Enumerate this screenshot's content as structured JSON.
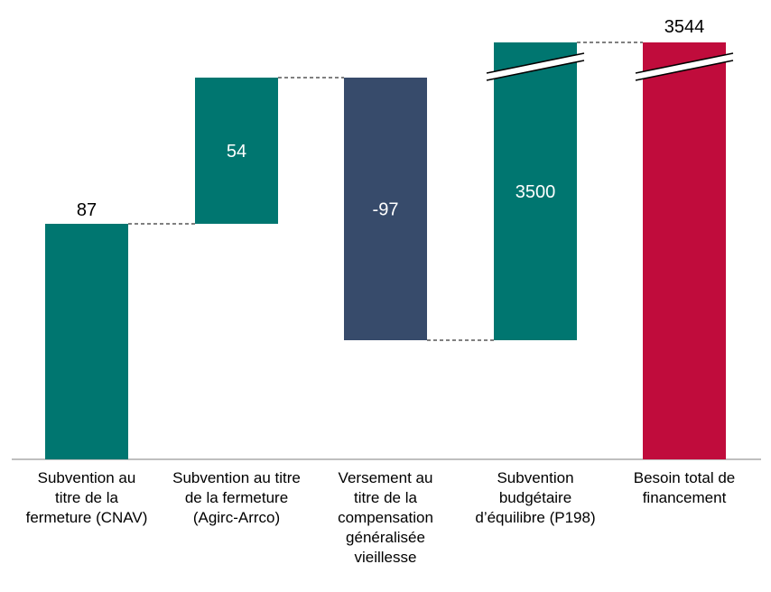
{
  "chart_data": {
    "type": "bar",
    "subtype": "waterfall",
    "title": "",
    "xlabel": "",
    "ylabel": "",
    "axis_break": true,
    "grid": false,
    "legend": "none",
    "categories": [
      "Subvention au titre de la fermeture (CNAV)",
      "Subvention au titre de la fermeture (Agirc-Arrco)",
      "Versement au titre de la compensation généralisée vieillesse",
      "Subvention budgétaire d’équilibre (P198)",
      "Besoin total de financement"
    ],
    "label_lines": [
      [
        "Subvention au",
        "titre de la",
        "fermeture (CNAV)"
      ],
      [
        "Subvention au titre",
        "de la fermeture",
        "(Agirc-Arrco)"
      ],
      [
        "Versement au",
        "titre de la",
        "compensation",
        "généralisée",
        "vieillesse"
      ],
      [
        "Subvention",
        "budgétaire",
        "d’équilibre (P198)"
      ],
      [
        "Besoin total de",
        "financement"
      ]
    ],
    "values": [
      87,
      54,
      -97,
      3500,
      3544
    ],
    "data_labels": [
      "87",
      "54",
      "-97",
      "3500",
      "3544"
    ],
    "colors": [
      "#007670",
      "#007670",
      "#374B6B",
      "#007670",
      "#C00C3C"
    ]
  }
}
